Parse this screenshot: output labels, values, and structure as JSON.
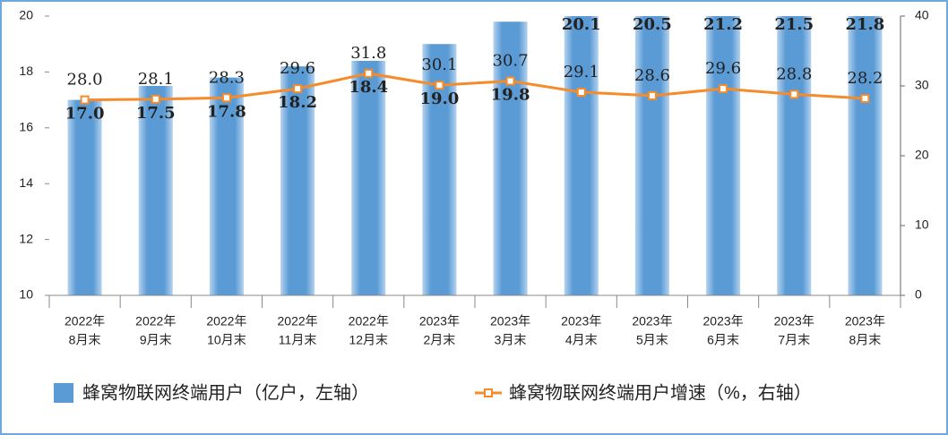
{
  "chart_data": {
    "type": "bar_line",
    "categories": [
      [
        "2022年",
        "8月末"
      ],
      [
        "2022年",
        "9月末"
      ],
      [
        "2022年",
        "10月末"
      ],
      [
        "2022年",
        "11月末"
      ],
      [
        "2022年",
        "12月末"
      ],
      [
        "2023年",
        "2月末"
      ],
      [
        "2023年",
        "3月末"
      ],
      [
        "2023年",
        "4月末"
      ],
      [
        "2023年",
        "5月末"
      ],
      [
        "2023年",
        "6月末"
      ],
      [
        "2023年",
        "7月末"
      ],
      [
        "2023年",
        "8月末"
      ]
    ],
    "series": [
      {
        "name": "蜂窝物联网终端用户（亿户，左轴）",
        "type": "bar",
        "color": "#5b9bd5",
        "values": [
          17.0,
          17.5,
          17.8,
          18.2,
          18.4,
          19.0,
          19.8,
          20.1,
          20.5,
          21.2,
          21.5,
          21.8
        ],
        "value_labels": [
          "17.0",
          "17.5",
          "17.8",
          "18.2",
          "18.4",
          "19.0",
          "19.8",
          "20.1",
          "20.5",
          "21.2",
          "21.5",
          "21.8"
        ]
      },
      {
        "name": "蜂窝物联网终端用户增速（%，右轴）",
        "type": "line",
        "axis": "y2",
        "color": "#f58b2a",
        "values": [
          28.0,
          28.1,
          28.3,
          29.6,
          31.8,
          30.1,
          30.7,
          29.1,
          28.6,
          29.6,
          28.8,
          28.2
        ],
        "value_labels": [
          "28.0",
          "28.1",
          "28.3",
          "29.6",
          "31.8",
          "30.1",
          "30.7",
          "29.1",
          "28.6",
          "29.6",
          "28.8",
          "28.2"
        ]
      }
    ],
    "ylim": [
      10,
      20
    ],
    "yticks": [
      10,
      12,
      14,
      16,
      18,
      20
    ],
    "y2lim": [
      0,
      40
    ],
    "y2ticks": [
      0,
      10,
      20,
      30,
      40
    ]
  }
}
